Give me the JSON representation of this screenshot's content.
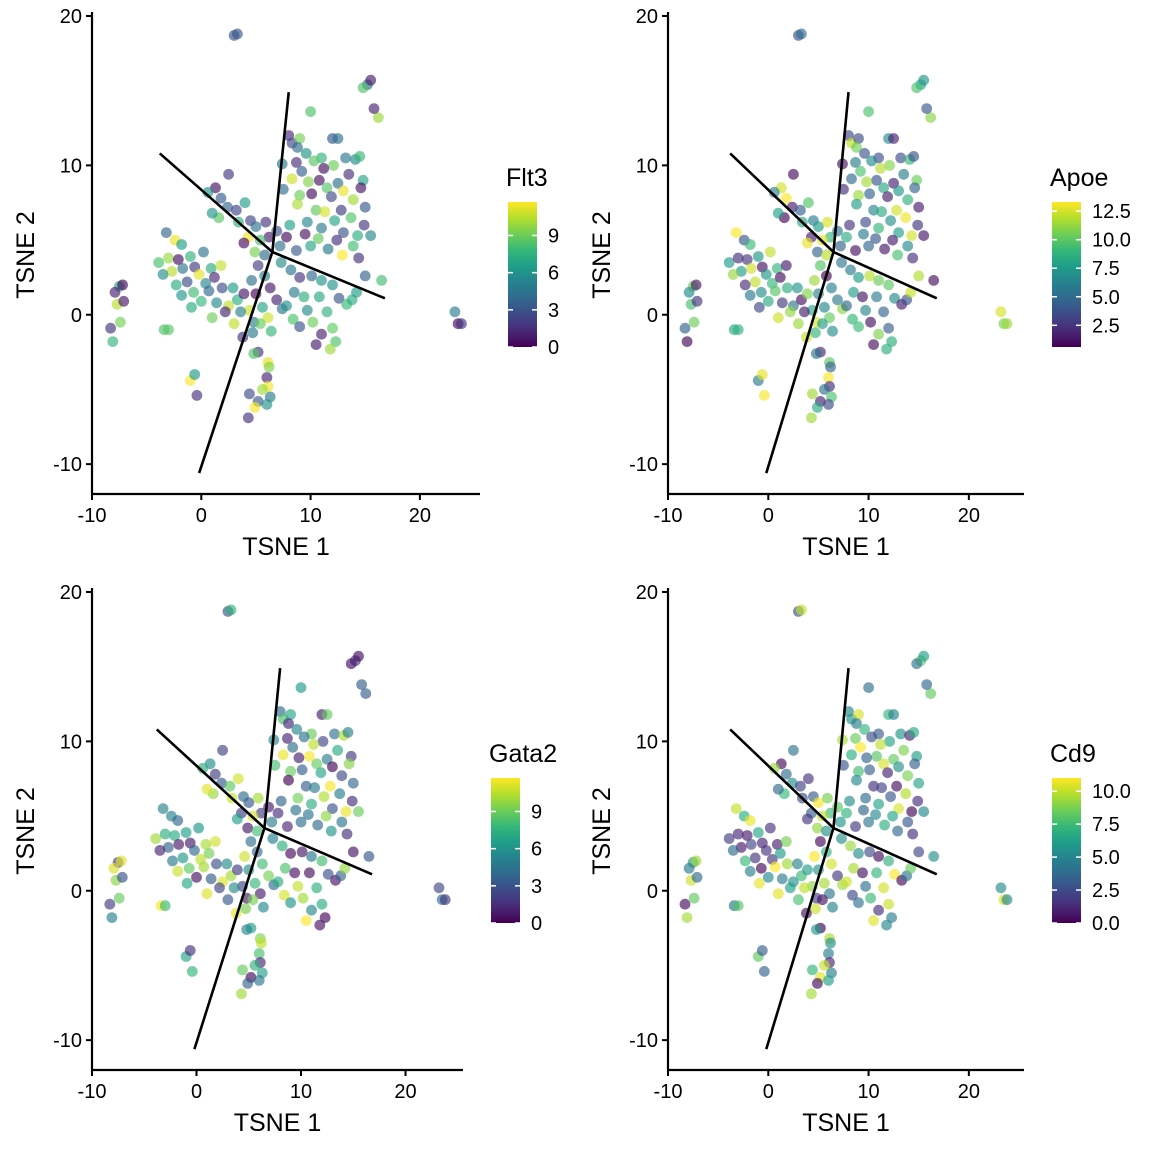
{
  "chart_data": [
    {
      "type": "scatter",
      "gene": "Flt3",
      "xlabel": "TSNE 1",
      "ylabel": "TSNE 2",
      "xlim": [
        -10,
        25.5
      ],
      "ylim": [
        -12,
        20
      ],
      "xticks": [
        -10,
        0,
        10,
        20
      ],
      "yticks": [
        -10,
        0,
        10,
        20
      ],
      "legend": {
        "title": "Flt3",
        "min": 0,
        "max": 11.7,
        "ticks": [
          0,
          3,
          6,
          9
        ]
      },
      "series": [
        {
          "seed": 11
        }
      ]
    },
    {
      "type": "scatter",
      "gene": "Apoe",
      "xlabel": "TSNE 1",
      "ylabel": "TSNE 2",
      "xlim": [
        -10,
        25.5
      ],
      "ylim": [
        -12,
        20
      ],
      "xticks": [
        -10,
        0,
        10,
        20
      ],
      "yticks": [
        -10,
        0,
        10,
        20
      ],
      "legend": {
        "title": "Apoe",
        "min": 0.6,
        "max": 13.3,
        "ticks": [
          2.5,
          5.0,
          7.5,
          10.0,
          12.5
        ]
      },
      "series": [
        {
          "seed": 23
        }
      ]
    },
    {
      "type": "scatter",
      "gene": "Gata2",
      "xlabel": "TSNE 1",
      "ylabel": "TSNE 2",
      "xlim": [
        -10,
        25.5
      ],
      "ylim": [
        -12,
        20
      ],
      "xticks": [
        -10,
        0,
        10,
        20
      ],
      "yticks": [
        -10,
        0,
        10,
        20
      ],
      "legend": {
        "title": "Gata2",
        "min": 0,
        "max": 11.7,
        "ticks": [
          0,
          3,
          6,
          9
        ]
      },
      "series": [
        {
          "seed": 37
        }
      ]
    },
    {
      "type": "scatter",
      "gene": "Cd9",
      "xlabel": "TSNE 1",
      "ylabel": "TSNE 2",
      "xlim": [
        -10,
        25.5
      ],
      "ylim": [
        -12,
        20
      ],
      "xticks": [
        -10,
        0,
        10,
        20
      ],
      "yticks": [
        -10,
        0,
        10,
        20
      ],
      "legend": {
        "title": "Cd9",
        "min": 0,
        "max": 11.0,
        "ticks": [
          0.0,
          2.5,
          5.0,
          7.5,
          10.0
        ]
      },
      "series": [
        {
          "seed": 51
        }
      ]
    }
  ],
  "trajectory": {
    "center": [
      6.5,
      4.2
    ],
    "branches": [
      [
        [
          6.5,
          4.2
        ],
        [
          -3.8,
          10.8
        ]
      ],
      [
        [
          6.5,
          4.2
        ],
        [
          8.0,
          14.9
        ]
      ],
      [
        [
          6.5,
          4.2
        ],
        [
          16.8,
          1.1
        ]
      ],
      [
        [
          6.5,
          4.2
        ],
        [
          -0.2,
          -10.6
        ]
      ]
    ]
  },
  "cells": [
    [
      3.0,
      18.7
    ],
    [
      3.3,
      18.8
    ],
    [
      15.2,
      15.4
    ],
    [
      15.5,
      15.7
    ],
    [
      14.8,
      15.2
    ],
    [
      16.2,
      13.2
    ],
    [
      15.8,
      13.8
    ],
    [
      10.0,
      13.6
    ],
    [
      8.0,
      12.0
    ],
    [
      8.3,
      11.5
    ],
    [
      9.0,
      11.8
    ],
    [
      12.0,
      11.8
    ],
    [
      12.5,
      11.8
    ],
    [
      8.8,
      11.2
    ],
    [
      9.6,
      10.8
    ],
    [
      11.0,
      10.5
    ],
    [
      13.2,
      10.5
    ],
    [
      14.1,
      10.4
    ],
    [
      14.5,
      10.6
    ],
    [
      7.4,
      10.1
    ],
    [
      8.7,
      10.2
    ],
    [
      10.3,
      10.3
    ],
    [
      12.1,
      10.0
    ],
    [
      11.2,
      9.8
    ],
    [
      9.2,
      9.6
    ],
    [
      13.5,
      9.4
    ],
    [
      14.8,
      9.0
    ],
    [
      10.8,
      9.0
    ],
    [
      12.5,
      8.8
    ],
    [
      8.3,
      9.1
    ],
    [
      9.8,
      8.9
    ],
    [
      11.5,
      8.5
    ],
    [
      13.0,
      8.3
    ],
    [
      14.6,
      8.5
    ],
    [
      7.5,
      8.4
    ],
    [
      9.0,
      8.0
    ],
    [
      10.1,
      8.1
    ],
    [
      11.9,
      7.9
    ],
    [
      13.9,
      7.7
    ],
    [
      12.8,
      7.0
    ],
    [
      15.0,
      7.2
    ],
    [
      8.8,
      7.4
    ],
    [
      10.5,
      7.0
    ],
    [
      11.3,
      6.9
    ],
    [
      13.7,
      6.5
    ],
    [
      14.9,
      6.0
    ],
    [
      9.7,
      6.2
    ],
    [
      12.2,
      6.3
    ],
    [
      8.1,
      6.0
    ],
    [
      11.0,
      5.8
    ],
    [
      13.0,
      5.5
    ],
    [
      14.3,
      5.3
    ],
    [
      15.5,
      5.3
    ],
    [
      9.5,
      5.4
    ],
    [
      10.7,
      5.1
    ],
    [
      12.4,
      5.0
    ],
    [
      7.8,
      5.2
    ],
    [
      13.9,
      4.6
    ],
    [
      11.6,
      4.4
    ],
    [
      10.0,
      4.6
    ],
    [
      8.7,
      4.3
    ],
    [
      12.9,
      4.0
    ],
    [
      14.4,
      3.8
    ],
    [
      2.5,
      9.4
    ],
    [
      1.3,
      8.5
    ],
    [
      0.6,
      8.2
    ],
    [
      1.8,
      7.8
    ],
    [
      2.4,
      7.2
    ],
    [
      1.6,
      6.5
    ],
    [
      1.0,
      6.8
    ],
    [
      3.2,
      7.0
    ],
    [
      4.0,
      7.5
    ],
    [
      4.5,
      6.3
    ],
    [
      3.4,
      6.2
    ],
    [
      5.0,
      5.9
    ],
    [
      5.9,
      6.2
    ],
    [
      6.2,
      5.2
    ],
    [
      5.4,
      5.0
    ],
    [
      4.3,
      5.2
    ],
    [
      3.9,
      4.8
    ],
    [
      6.9,
      5.6
    ],
    [
      7.2,
      4.6
    ],
    [
      4.9,
      4.2
    ],
    [
      5.8,
      4.0
    ],
    [
      -3.2,
      5.5
    ],
    [
      -2.4,
      5.0
    ],
    [
      -1.8,
      4.7
    ],
    [
      -3.9,
      3.5
    ],
    [
      -3.0,
      3.8
    ],
    [
      -2.1,
      3.7
    ],
    [
      -1.0,
      3.9
    ],
    [
      0.2,
      4.2
    ],
    [
      -0.6,
      3.2
    ],
    [
      -1.7,
      3.1
    ],
    [
      -2.7,
      2.9
    ],
    [
      -3.5,
      2.7
    ],
    [
      -0.2,
      2.7
    ],
    [
      0.9,
      3.1
    ],
    [
      1.8,
      3.3
    ],
    [
      -1.3,
      2.2
    ],
    [
      -2.3,
      2.0
    ],
    [
      0.4,
      2.1
    ],
    [
      1.2,
      2.5
    ],
    [
      -0.7,
      1.5
    ],
    [
      0.7,
      1.6
    ],
    [
      1.9,
      1.8
    ],
    [
      -1.8,
      1.3
    ],
    [
      0.0,
      0.9
    ],
    [
      1.4,
      0.8
    ],
    [
      -0.9,
      0.5
    ],
    [
      2.5,
      0.6
    ],
    [
      3.3,
      1.0
    ],
    [
      2.9,
      1.8
    ],
    [
      2.2,
      0.2
    ],
    [
      1.0,
      -0.2
    ],
    [
      -3.4,
      -1.0
    ],
    [
      -3.0,
      -1.0
    ],
    [
      5.2,
      3.3
    ],
    [
      5.8,
      2.6
    ],
    [
      4.6,
      2.3
    ],
    [
      6.3,
      1.8
    ],
    [
      5.0,
      1.4
    ],
    [
      3.9,
      1.4
    ],
    [
      6.9,
      1.0
    ],
    [
      5.6,
      0.5
    ],
    [
      4.4,
      0.3
    ],
    [
      3.6,
      0.2
    ],
    [
      7.4,
      0.4
    ],
    [
      6.1,
      -0.2
    ],
    [
      4.8,
      -0.5
    ],
    [
      3.0,
      -0.6
    ],
    [
      5.4,
      -0.6
    ],
    [
      4.7,
      -1.2
    ],
    [
      3.8,
      -1.5
    ],
    [
      6.4,
      -1.1
    ],
    [
      7.3,
      3.5
    ],
    [
      8.2,
      3.0
    ],
    [
      9.0,
      2.5
    ],
    [
      10.1,
      2.6
    ],
    [
      11.0,
      2.3
    ],
    [
      12.0,
      2.0
    ],
    [
      8.5,
      1.5
    ],
    [
      9.4,
      1.2
    ],
    [
      10.8,
      1.2
    ],
    [
      12.6,
      1.1
    ],
    [
      7.8,
      0.6
    ],
    [
      9.7,
      0.3
    ],
    [
      11.5,
      0.2
    ],
    [
      13.3,
      0.7
    ],
    [
      8.4,
      -0.3
    ],
    [
      10.2,
      -0.5
    ],
    [
      12.0,
      -0.9
    ],
    [
      9.0,
      -0.8
    ],
    [
      11.0,
      -1.3
    ],
    [
      12.3,
      -1.8
    ],
    [
      13.8,
      1.0
    ],
    [
      14.2,
      1.5
    ],
    [
      15.0,
      2.6
    ],
    [
      16.5,
      2.3
    ],
    [
      10.5,
      -2.0
    ],
    [
      11.8,
      -2.3
    ],
    [
      5.2,
      -2.5
    ],
    [
      4.8,
      -2.6
    ],
    [
      6.1,
      -3.2
    ],
    [
      6.2,
      -3.5
    ],
    [
      6.0,
      -4.2
    ],
    [
      6.1,
      -4.8
    ],
    [
      5.6,
      -5.0
    ],
    [
      4.4,
      -5.3
    ],
    [
      6.3,
      -5.5
    ],
    [
      5.2,
      -5.8
    ],
    [
      4.9,
      -6.2
    ],
    [
      4.3,
      -6.9
    ],
    [
      6.0,
      -6.0
    ],
    [
      -8.3,
      -0.9
    ],
    [
      -8.1,
      -1.8
    ],
    [
      -7.7,
      0.7
    ],
    [
      -7.5,
      1.9
    ],
    [
      -7.9,
      1.5
    ],
    [
      -7.4,
      -0.5
    ],
    [
      -7.1,
      0.9
    ],
    [
      -7.2,
      2.0
    ],
    [
      -1.0,
      -4.4
    ],
    [
      -0.6,
      -4.0
    ],
    [
      -0.4,
      -5.4
    ],
    [
      23.2,
      0.2
    ],
    [
      23.5,
      -0.6
    ],
    [
      23.8,
      -0.6
    ]
  ]
}
